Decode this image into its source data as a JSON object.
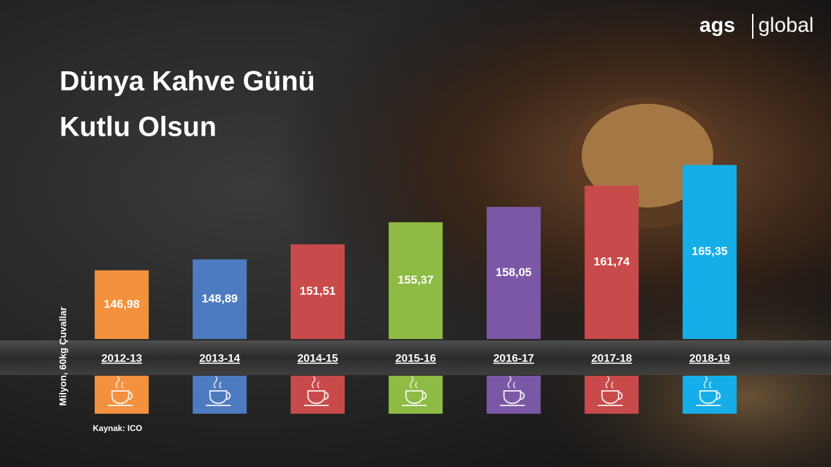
{
  "chart_data": {
    "type": "bar",
    "title": [
      "Dünya Kahve Günü",
      "Kutlu Olsun"
    ],
    "y_label": "Milyon, 60kg Çuvallar",
    "source": "Kaynak: ICO",
    "logo": [
      "ags",
      "global"
    ],
    "categories": [
      "2012-13",
      "2013-14",
      "2014-15",
      "2015-16",
      "2016-17",
      "2017-18",
      "2018-19"
    ],
    "values": [
      146.98,
      148.89,
      151.51,
      155.37,
      158.05,
      161.74,
      165.35
    ],
    "value_labels": [
      "146,98",
      "148,89",
      "151,51",
      "155,37",
      "158,05",
      "161,74",
      "165,35"
    ],
    "colors": [
      "#f4913f",
      "#4d7bc0",
      "#c94a4a",
      "#8dbb44",
      "#7b58a6",
      "#c94a4a",
      "#16aee8"
    ],
    "ylim": [
      135,
      170
    ]
  }
}
